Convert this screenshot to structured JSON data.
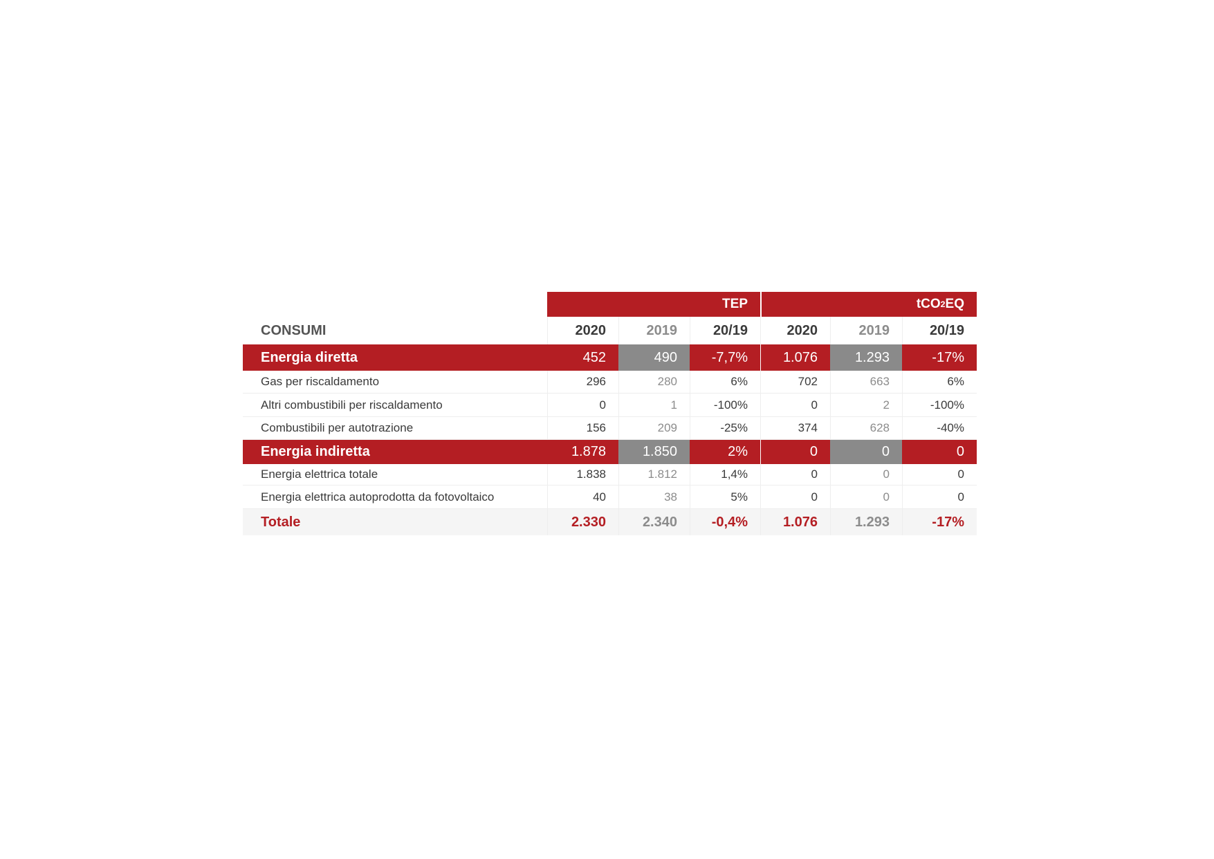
{
  "table": {
    "title": "CONSUMI",
    "groups": [
      {
        "label_parts": [
          "TEP"
        ]
      },
      {
        "label_parts": [
          "tCO",
          "2",
          "EQ"
        ]
      }
    ],
    "columns": [
      "2020",
      "2019",
      "20/19",
      "2020",
      "2019",
      "20/19"
    ],
    "rows": [
      {
        "kind": "section",
        "label": "Energia diretta",
        "cells": [
          "452",
          "490",
          "-7,7%",
          "1.076",
          "1.293",
          "-17%"
        ]
      },
      {
        "kind": "item",
        "label": "Gas per riscaldamento",
        "cells": [
          "296",
          "280",
          "6%",
          "702",
          "663",
          "6%"
        ]
      },
      {
        "kind": "item",
        "label": "Altri combustibili per riscaldamento",
        "cells": [
          "0",
          "1",
          "-100%",
          "0",
          "2",
          "-100%"
        ]
      },
      {
        "kind": "item",
        "label": "Combustibili per autotrazione",
        "cells": [
          "156",
          "209",
          "-25%",
          "374",
          "628",
          "-40%"
        ]
      },
      {
        "kind": "section",
        "label": "Energia indiretta",
        "cells": [
          "1.878",
          "1.850",
          "2%",
          "0",
          "0",
          "0"
        ]
      },
      {
        "kind": "item",
        "label": "Energia elettrica totale",
        "cells": [
          "1.838",
          "1.812",
          "1,4%",
          "0",
          "0",
          "0"
        ]
      },
      {
        "kind": "item",
        "label": "Energia elettrica autoprodotta da fotovoltaico",
        "cells": [
          "40",
          "38",
          "5%",
          "0",
          "0",
          "0"
        ]
      },
      {
        "kind": "total",
        "label": "Totale",
        "cells": [
          "2.330",
          "2.340",
          "-0,4%",
          "1.076",
          "1.293",
          "-17%"
        ]
      }
    ]
  }
}
